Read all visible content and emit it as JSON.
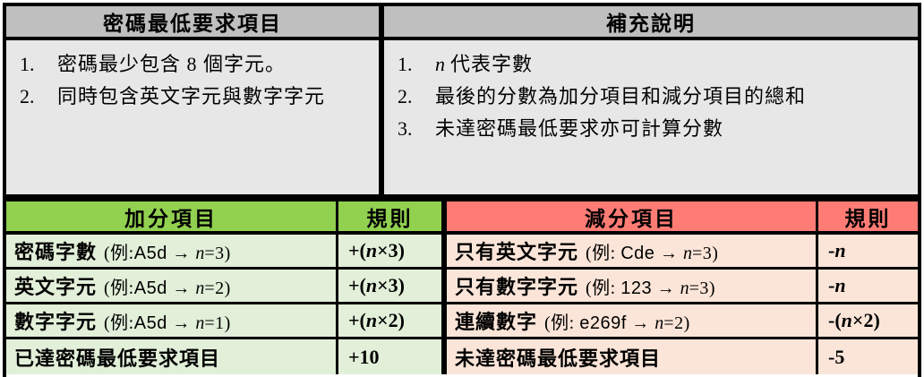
{
  "colors": {
    "header_gray": "#bfbfbf",
    "top_body_gray": "#e8e7e7",
    "plus_header_green": "#92d050",
    "plus_row_green": "#e2efd9",
    "minus_header_red": "#ff7c75",
    "minus_row_pink": "#fbe5d8",
    "border_black": "#000000"
  },
  "top": {
    "left": {
      "header": "密碼最低要求項目",
      "items": [
        {
          "num": "1.",
          "text": "密碼最少包含 8 個字元。"
        },
        {
          "num": "2.",
          "text": "同時包含英文字元與數字字元"
        }
      ]
    },
    "right": {
      "header": "補充說明",
      "items": [
        {
          "num": "1.",
          "n": "n",
          "text": "代表字數"
        },
        {
          "num": "2.",
          "text": "最後的分數為加分項目和減分項目的總和"
        },
        {
          "num": "3.",
          "text": "未達密碼最低要求亦可計算分數"
        }
      ]
    }
  },
  "plus": {
    "header": "加分項目",
    "rule_header": "規則",
    "rows": [
      {
        "name": "密碼字數",
        "ex_pre": "(例:",
        "ex_code": "A5d",
        "ex_arrow": " → ",
        "ex_n": "n",
        "ex_post": "=3)",
        "rule_pre": "+(",
        "rule_n": "n",
        "rule_post": "×3)"
      },
      {
        "name": "英文字元",
        "ex_pre": "(例:",
        "ex_code": "A5d",
        "ex_arrow": " → ",
        "ex_n": "n",
        "ex_post": "=2)",
        "rule_pre": "+(",
        "rule_n": "n",
        "rule_post": "×3)"
      },
      {
        "name": "數字字元",
        "ex_pre": "(例:",
        "ex_code": "A5d",
        "ex_arrow": " → ",
        "ex_n": "n",
        "ex_post": "=1)",
        "rule_pre": "+(",
        "rule_n": "n",
        "rule_post": "×2)"
      },
      {
        "name": "已達密碼最低要求項目",
        "ex_pre": "",
        "ex_code": "",
        "ex_arrow": "",
        "ex_n": "",
        "ex_post": "",
        "rule_pre": "+10",
        "rule_n": "",
        "rule_post": ""
      }
    ]
  },
  "minus": {
    "header": "減分項目",
    "rule_header": "規則",
    "rows": [
      {
        "name": "只有英文字元",
        "ex_pre": "(例: ",
        "ex_code": "Cde",
        "ex_arrow": " → ",
        "ex_n": "n",
        "ex_post": "=3)",
        "rule_pre": "-",
        "rule_n": "n",
        "rule_post": ""
      },
      {
        "name": "只有數字字元",
        "ex_pre": "(例: ",
        "ex_code": "123",
        "ex_arrow": " → ",
        "ex_n": "n",
        "ex_post": "=3)",
        "rule_pre": "-",
        "rule_n": "n",
        "rule_post": ""
      },
      {
        "name": "連續數字",
        "ex_pre": "(例: ",
        "ex_code": "e269f",
        "ex_arrow": " → ",
        "ex_n": "n",
        "ex_post": "=2)",
        "rule_pre": "-(",
        "rule_n": "n",
        "rule_post": "×2)"
      },
      {
        "name": "未達密碼最低要求項目",
        "ex_pre": "",
        "ex_code": "",
        "ex_arrow": "",
        "ex_n": "",
        "ex_post": "",
        "rule_pre": "-5",
        "rule_n": "",
        "rule_post": ""
      }
    ]
  }
}
